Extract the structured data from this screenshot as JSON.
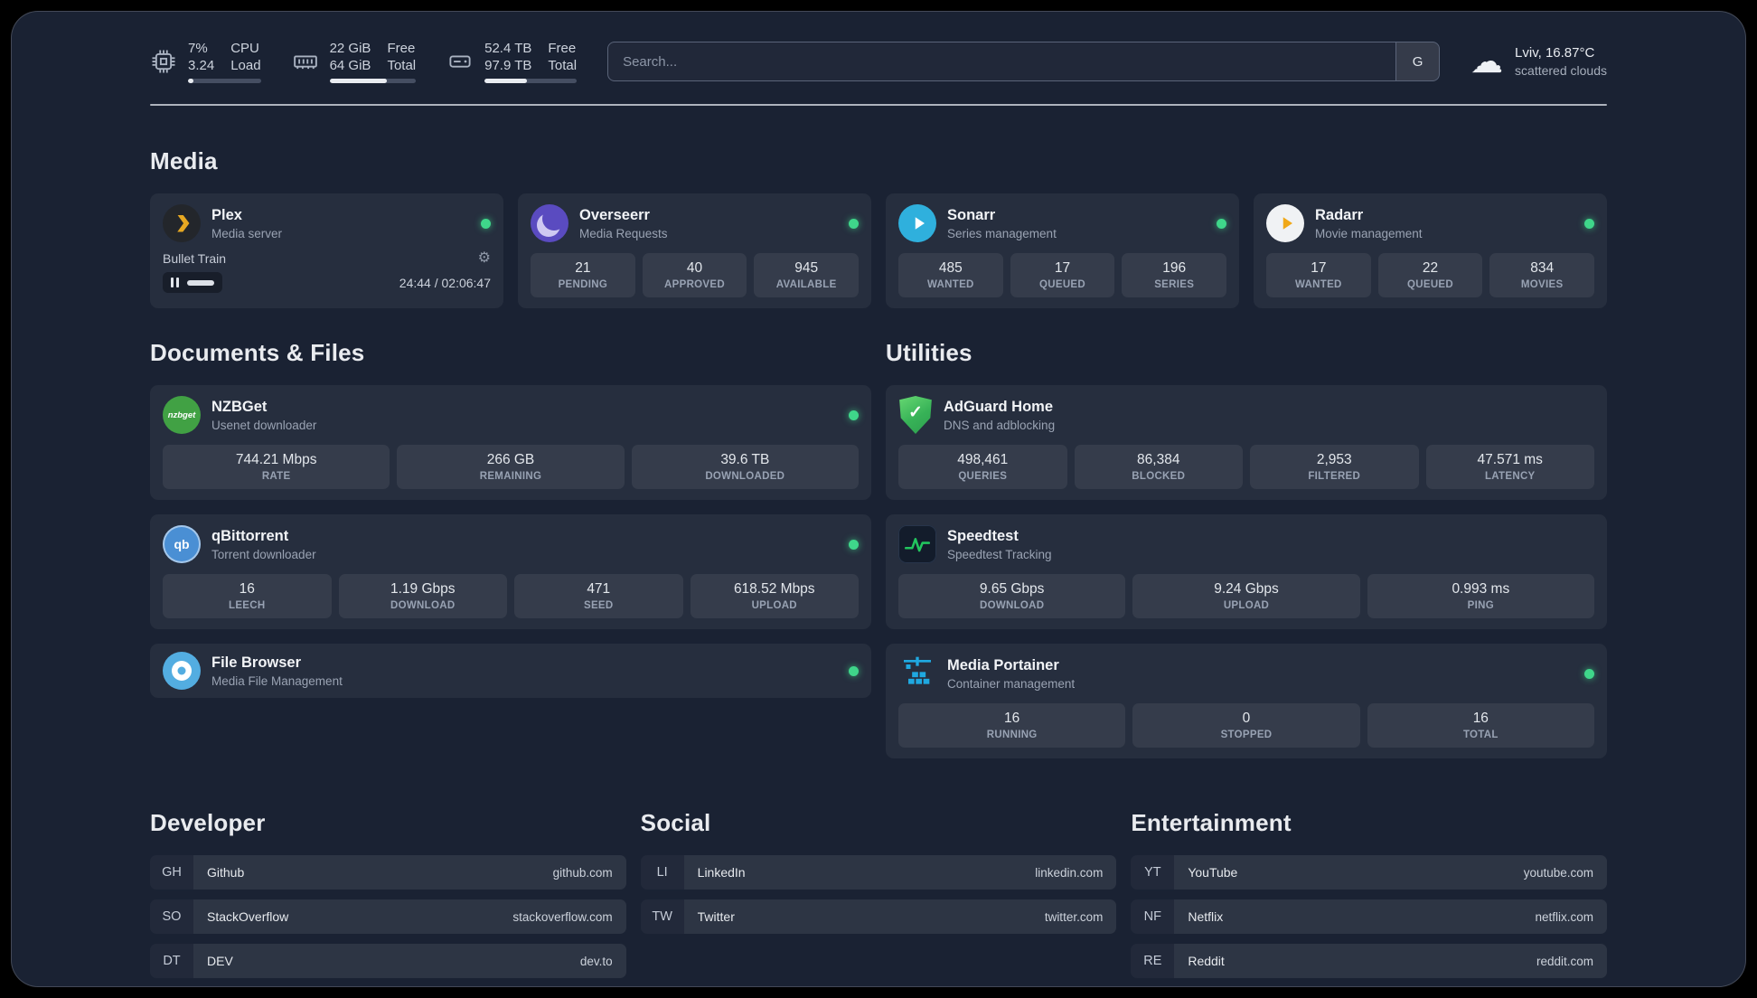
{
  "colors": {
    "status_online": "#3fd68a",
    "accent_plex": "#e7a822",
    "accent_adguard": "#37b257",
    "accent_portainer": "#1fa8e0",
    "accent_speedtest_line": "#22c55e"
  },
  "icons": {
    "cloud": "☁",
    "gear": "⚙",
    "shield_check": "✓"
  },
  "topbar": {
    "cpu": {
      "value_top": "7%",
      "value_bottom": "3.24",
      "label_top": "CPU",
      "label_bottom": "Load",
      "bar_pct": 8
    },
    "memory": {
      "value_top": "22 GiB",
      "value_bottom": "64 GiB",
      "label_top": "Free",
      "label_bottom": "Total",
      "bar_pct": 66
    },
    "disk": {
      "value_top": "52.4 TB",
      "value_bottom": "97.9 TB",
      "label_top": "Free",
      "label_bottom": "Total",
      "bar_pct": 46
    },
    "search": {
      "placeholder": "Search...",
      "provider_button": "G"
    },
    "weather": {
      "location": "Lviv, 16.87°C",
      "condition": "scattered clouds"
    }
  },
  "media": {
    "title": "Media",
    "plex": {
      "name": "Plex",
      "description": "Media server",
      "status": "online",
      "now_playing": "Bullet Train",
      "elapsed_total": "24:44 / 02:06:47"
    },
    "overseerr": {
      "name": "Overseerr",
      "description": "Media Requests",
      "status": "online",
      "stats": [
        {
          "value": "21",
          "label": "PENDING"
        },
        {
          "value": "40",
          "label": "APPROVED"
        },
        {
          "value": "945",
          "label": "AVAILABLE"
        }
      ]
    },
    "sonarr": {
      "name": "Sonarr",
      "description": "Series management",
      "status": "online",
      "stats": [
        {
          "value": "485",
          "label": "WANTED"
        },
        {
          "value": "17",
          "label": "QUEUED"
        },
        {
          "value": "196",
          "label": "SERIES"
        }
      ]
    },
    "radarr": {
      "name": "Radarr",
      "description": "Movie management",
      "status": "online",
      "stats": [
        {
          "value": "17",
          "label": "WANTED"
        },
        {
          "value": "22",
          "label": "QUEUED"
        },
        {
          "value": "834",
          "label": "MOVIES"
        }
      ]
    }
  },
  "documents": {
    "title": "Documents & Files",
    "nzbget": {
      "name": "NZBGet",
      "description": "Usenet downloader",
      "icon_text": "nzbget",
      "status": "online",
      "stats": [
        {
          "value": "744.21 Mbps",
          "label": "RATE"
        },
        {
          "value": "266 GB",
          "label": "REMAINING"
        },
        {
          "value": "39.6 TB",
          "label": "DOWNLOADED"
        }
      ]
    },
    "qbittorrent": {
      "name": "qBittorrent",
      "description": "Torrent downloader",
      "icon_text": "qb",
      "status": "online",
      "stats": [
        {
          "value": "16",
          "label": "LEECH"
        },
        {
          "value": "1.19 Gbps",
          "label": "DOWNLOAD"
        },
        {
          "value": "471",
          "label": "SEED"
        },
        {
          "value": "618.52 Mbps",
          "label": "UPLOAD"
        }
      ]
    },
    "filebrowser": {
      "name": "File Browser",
      "description": "Media File Management",
      "status": "online"
    }
  },
  "utilities": {
    "title": "Utilities",
    "adguard": {
      "name": "AdGuard Home",
      "description": "DNS and adblocking",
      "stats": [
        {
          "value": "498,461",
          "label": "QUERIES"
        },
        {
          "value": "86,384",
          "label": "BLOCKED"
        },
        {
          "value": "2,953",
          "label": "FILTERED"
        },
        {
          "value": "47.571 ms",
          "label": "LATENCY"
        }
      ]
    },
    "speedtest": {
      "name": "Speedtest",
      "description": "Speedtest Tracking",
      "stats": [
        {
          "value": "9.65 Gbps",
          "label": "DOWNLOAD"
        },
        {
          "value": "9.24 Gbps",
          "label": "UPLOAD"
        },
        {
          "value": "0.993 ms",
          "label": "PING"
        }
      ]
    },
    "portainer": {
      "name": "Media Portainer",
      "description": "Container management",
      "status": "online",
      "stats": [
        {
          "value": "16",
          "label": "RUNNING"
        },
        {
          "value": "0",
          "label": "STOPPED"
        },
        {
          "value": "16",
          "label": "TOTAL"
        }
      ]
    }
  },
  "bookmarks": {
    "developer": {
      "title": "Developer",
      "items": [
        {
          "abbr": "GH",
          "name": "Github",
          "url": "github.com"
        },
        {
          "abbr": "SO",
          "name": "StackOverflow",
          "url": "stackoverflow.com"
        },
        {
          "abbr": "DT",
          "name": "DEV",
          "url": "dev.to"
        }
      ]
    },
    "social": {
      "title": "Social",
      "items": [
        {
          "abbr": "LI",
          "name": "LinkedIn",
          "url": "linkedin.com"
        },
        {
          "abbr": "TW",
          "name": "Twitter",
          "url": "twitter.com"
        }
      ]
    },
    "entertainment": {
      "title": "Entertainment",
      "items": [
        {
          "abbr": "YT",
          "name": "YouTube",
          "url": "youtube.com"
        },
        {
          "abbr": "NF",
          "name": "Netflix",
          "url": "netflix.com"
        },
        {
          "abbr": "RE",
          "name": "Reddit",
          "url": "reddit.com"
        }
      ]
    }
  }
}
